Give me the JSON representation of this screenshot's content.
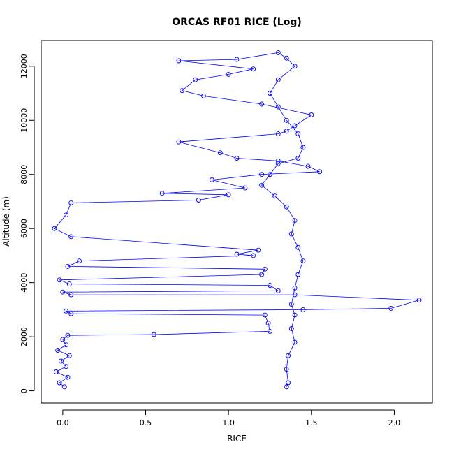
{
  "chart_data": {
    "type": "scatter",
    "title": "ORCAS RF01 RICE (Log)",
    "xlabel": "RICE",
    "ylabel": "Altitude (m)",
    "xlim": [
      -0.13,
      2.23
    ],
    "ylim": [
      -450,
      12950
    ],
    "x_ticks": [
      0,
      0.5,
      1,
      1.5,
      2
    ],
    "x_tick_labels": [
      "0.0",
      "0.5",
      "1.0",
      "1.5",
      "2.0"
    ],
    "y_ticks": [
      0,
      2000,
      4000,
      6000,
      8000,
      10000,
      12000
    ],
    "y_tick_labels": [
      "0",
      "2000",
      "4000",
      "6000",
      "8000",
      "10000",
      "12000"
    ],
    "grid": false,
    "legend": "none",
    "series": [
      {
        "color": "#0000ff",
        "marker": "open-circle",
        "connected": true,
        "points": [
          [
            0.01,
            150
          ],
          [
            -0.02,
            300
          ],
          [
            0.03,
            500
          ],
          [
            -0.04,
            700
          ],
          [
            0.02,
            900
          ],
          [
            -0.01,
            1100
          ],
          [
            0.04,
            1300
          ],
          [
            -0.03,
            1500
          ],
          [
            0.02,
            1700
          ],
          [
            0.0,
            1900
          ],
          [
            0.03,
            2050
          ],
          [
            0.55,
            2080
          ],
          [
            1.25,
            2200
          ],
          [
            1.24,
            2500
          ],
          [
            1.22,
            2800
          ],
          [
            0.05,
            2850
          ],
          [
            0.02,
            2950
          ],
          [
            1.45,
            3000
          ],
          [
            1.98,
            3050
          ],
          [
            2.15,
            3350
          ],
          [
            1.4,
            3550
          ],
          [
            0.05,
            3550
          ],
          [
            0.0,
            3650
          ],
          [
            1.3,
            3700
          ],
          [
            1.25,
            3900
          ],
          [
            0.04,
            3950
          ],
          [
            -0.02,
            4100
          ],
          [
            1.2,
            4300
          ],
          [
            1.22,
            4500
          ],
          [
            0.03,
            4600
          ],
          [
            0.1,
            4800
          ],
          [
            1.15,
            5000
          ],
          [
            1.05,
            5050
          ],
          [
            1.18,
            5200
          ],
          [
            0.05,
            5700
          ],
          [
            -0.05,
            6000
          ],
          [
            0.02,
            6500
          ],
          [
            0.05,
            6950
          ],
          [
            0.82,
            7050
          ],
          [
            1.0,
            7250
          ],
          [
            0.6,
            7300
          ],
          [
            1.1,
            7500
          ],
          [
            0.9,
            7800
          ],
          [
            1.2,
            8000
          ],
          [
            1.55,
            8100
          ],
          [
            1.48,
            8300
          ],
          [
            1.3,
            8500
          ],
          [
            1.05,
            8600
          ],
          [
            0.95,
            8800
          ],
          [
            0.7,
            9200
          ],
          [
            1.3,
            9500
          ],
          [
            1.35,
            9600
          ],
          [
            1.4,
            9800
          ],
          [
            1.5,
            10200
          ],
          [
            1.2,
            10600
          ],
          [
            0.85,
            10900
          ],
          [
            0.72,
            11100
          ],
          [
            0.8,
            11500
          ],
          [
            1.0,
            11700
          ],
          [
            1.15,
            11900
          ],
          [
            0.7,
            12200
          ],
          [
            1.05,
            12250
          ],
          [
            1.3,
            12500
          ],
          [
            1.35,
            12300
          ],
          [
            1.4,
            12000
          ],
          [
            1.3,
            11500
          ],
          [
            1.25,
            11000
          ],
          [
            1.3,
            10500
          ],
          [
            1.35,
            10000
          ],
          [
            1.42,
            9500
          ],
          [
            1.45,
            9000
          ],
          [
            1.42,
            8600
          ],
          [
            1.3,
            8400
          ],
          [
            1.25,
            8000
          ],
          [
            1.2,
            7600
          ],
          [
            1.28,
            7200
          ],
          [
            1.35,
            6800
          ],
          [
            1.4,
            6300
          ],
          [
            1.38,
            5800
          ],
          [
            1.42,
            5300
          ],
          [
            1.45,
            4800
          ],
          [
            1.42,
            4300
          ],
          [
            1.4,
            3800
          ],
          [
            1.38,
            3200
          ],
          [
            1.4,
            2800
          ],
          [
            1.38,
            2300
          ],
          [
            1.4,
            1800
          ],
          [
            1.36,
            1300
          ],
          [
            1.35,
            800
          ],
          [
            1.36,
            300
          ],
          [
            1.35,
            150
          ]
        ]
      }
    ]
  }
}
